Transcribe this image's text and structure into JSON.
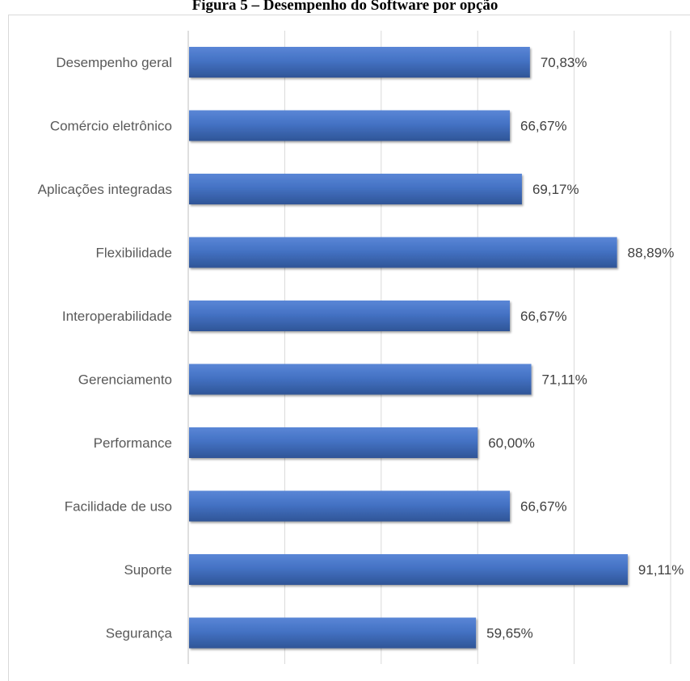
{
  "figure": {
    "title": "Figura 5 – Desempenho do Software por opção"
  },
  "chart_data": {
    "type": "bar",
    "orientation": "horizontal",
    "categories": [
      "Desempenho geral",
      "Comércio eletrônico",
      "Aplicações integradas",
      "Flexibilidade",
      "Interoperabilidade",
      "Gerenciamento",
      "Performance",
      "Facilidade de uso",
      "Suporte",
      "Segurança"
    ],
    "values": [
      70.83,
      66.67,
      69.17,
      88.89,
      66.67,
      71.11,
      60.0,
      66.67,
      91.11,
      59.65
    ],
    "value_labels": [
      "70,83%",
      "66,67%",
      "69,17%",
      "88,89%",
      "66,67%",
      "71,11%",
      "60,00%",
      "66,67%",
      "91,11%",
      "59,65%"
    ],
    "xlim": [
      0,
      100
    ],
    "grid": true,
    "legend": "none",
    "bar_color": "#4472c4"
  }
}
